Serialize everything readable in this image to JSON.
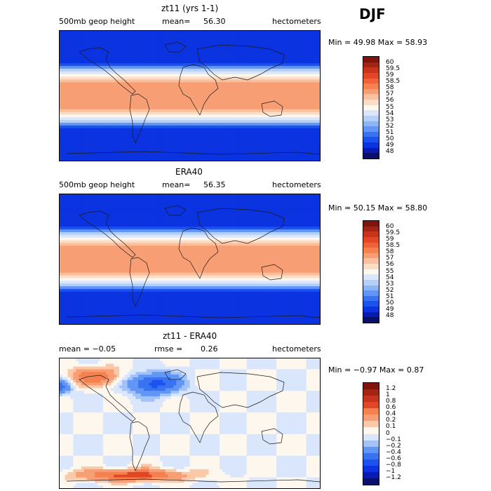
{
  "season": "DJF",
  "palette_abs": [
    "#08106b",
    "#0a1ab3",
    "#0b33e0",
    "#1b52f0",
    "#3973f2",
    "#6296f4",
    "#8cb5f6",
    "#b4cff9",
    "#d9e6fb",
    "#fdf7ee",
    "#fcdcc5",
    "#fbbf9b",
    "#f89e74",
    "#f5814f",
    "#f0613a",
    "#e34527",
    "#c8331b",
    "#a42413",
    "#7f140c"
  ],
  "palette_diff": [
    "#08106b",
    "#0a1ab3",
    "#0b33e0",
    "#1b52f0",
    "#3973f2",
    "#6296f4",
    "#a3c2f7",
    "#d9e6fb",
    "#fdf7ee",
    "#fbc9a8",
    "#f89e74",
    "#f5814f",
    "#e34527",
    "#c8331b",
    "#a42413",
    "#7f140c"
  ],
  "panels": [
    {
      "title": "zt11 (yrs 1-1)",
      "left_label": "500mb geop height",
      "stat_label": "mean=",
      "stat_value": "56.30",
      "units": "hectometers",
      "minmax": "Min =  49.98 Max =  58.93"
    },
    {
      "title": "ERA40",
      "left_label": "500mb geop height",
      "stat_label": "mean=",
      "stat_value": "56.35",
      "units": "hectometers",
      "minmax": "Min =  50.15 Max =  58.80"
    },
    {
      "title": "zt11 - ERA40",
      "left_label": "mean =   −0.05",
      "stat_label": "rmse =",
      "stat_value": "0.26",
      "units": "hectometers",
      "minmax": "Min =  −0.97 Max =   0.87"
    }
  ],
  "chart_data": [
    {
      "type": "heatmap",
      "title": "zt11 (yrs 1-1)",
      "variable": "500mb geop height",
      "units": "hectometers",
      "mean": 56.3,
      "min": 49.98,
      "max": 58.93,
      "colorbar_levels": [
        "60",
        "59.5",
        "59",
        "58.5",
        "58",
        "57",
        "56",
        "55",
        "54",
        "53",
        "52",
        "51",
        "50",
        "49",
        "48"
      ]
    },
    {
      "type": "heatmap",
      "title": "ERA40",
      "variable": "500mb geop height",
      "units": "hectometers",
      "mean": 56.35,
      "min": 50.15,
      "max": 58.8,
      "colorbar_levels": [
        "60",
        "59.5",
        "59",
        "58.5",
        "58",
        "57",
        "56",
        "55",
        "54",
        "53",
        "52",
        "51",
        "50",
        "49",
        "48"
      ]
    },
    {
      "type": "heatmap",
      "title": "zt11 - ERA40",
      "units": "hectometers",
      "mean": -0.05,
      "rmse": 0.26,
      "min": -0.97,
      "max": 0.87,
      "colorbar_levels": [
        "1.2",
        "1",
        "0.8",
        "0.6",
        "0.4",
        "0.2",
        "0.1",
        "0",
        "−0.1",
        "−0.2",
        "−0.4",
        "−0.6",
        "−0.8",
        "−1",
        "−1.2"
      ]
    }
  ]
}
